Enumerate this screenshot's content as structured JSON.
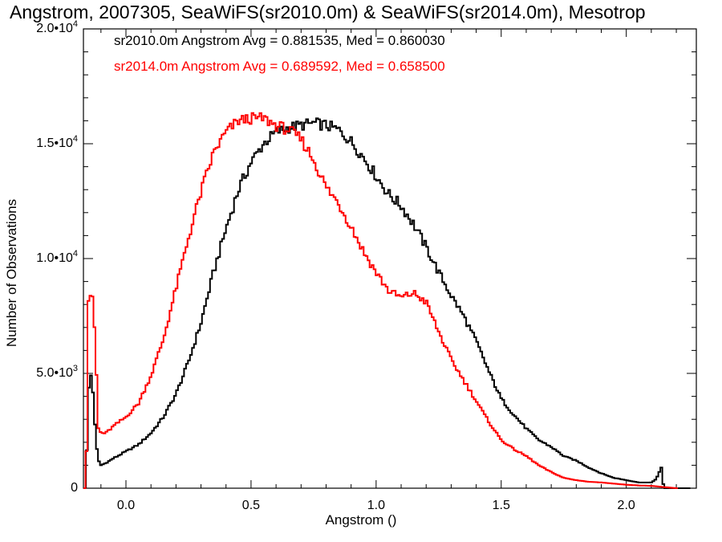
{
  "chart_data": {
    "type": "line",
    "title": "Angstrom, 2007305, SeaWiFS(sr2010.0m) & SeaWiFS(sr2014.0m), Mesotrop",
    "xlabel": "Angstrom ()",
    "ylabel": "Number of Observations",
    "xlim": [
      -0.17,
      2.28
    ],
    "ylim": [
      0,
      20000
    ],
    "x_ticks": [
      {
        "value": 0.0,
        "label": "0.0"
      },
      {
        "value": 0.5,
        "label": "0.5"
      },
      {
        "value": 1.0,
        "label": "1.0"
      },
      {
        "value": 1.5,
        "label": "1.5"
      },
      {
        "value": 2.0,
        "label": "2.0"
      }
    ],
    "y_ticks": [
      {
        "value": 0,
        "label": "0",
        "exp": ""
      },
      {
        "value": 5000,
        "label": "5.0•10",
        "exp": "3"
      },
      {
        "value": 10000,
        "label": "1.0•10",
        "exp": "4"
      },
      {
        "value": 15000,
        "label": "1.5•10",
        "exp": "4"
      },
      {
        "value": 20000,
        "label": "2.0•10",
        "exp": "4"
      }
    ],
    "step": "histogram",
    "series": [
      {
        "name": "sr2010.0m",
        "color": "#000000",
        "stat_text": "sr2010.0m Angstrom Avg = 0.881535, Med = 0.860030",
        "x": [
          -0.16,
          -0.15,
          -0.14,
          -0.13,
          -0.12,
          -0.11,
          -0.1,
          -0.08,
          -0.05,
          0.0,
          0.05,
          0.1,
          0.15,
          0.2,
          0.25,
          0.3,
          0.35,
          0.4,
          0.45,
          0.5,
          0.55,
          0.6,
          0.65,
          0.7,
          0.75,
          0.8,
          0.85,
          0.9,
          0.95,
          1.0,
          1.05,
          1.1,
          1.15,
          1.2,
          1.25,
          1.3,
          1.35,
          1.4,
          1.45,
          1.5,
          1.55,
          1.6,
          1.65,
          1.7,
          1.75,
          1.8,
          1.85,
          1.9,
          1.95,
          2.0,
          2.05,
          2.1,
          2.12,
          2.14,
          2.15,
          2.2,
          2.25
        ],
        "y": [
          0,
          4200,
          4900,
          4000,
          2000,
          1200,
          1000,
          1100,
          1300,
          1600,
          1900,
          2400,
          3100,
          4100,
          5500,
          7200,
          9400,
          11300,
          13000,
          14200,
          15000,
          15500,
          15700,
          15800,
          15900,
          15800,
          15600,
          15100,
          14400,
          13600,
          12800,
          12300,
          11500,
          10500,
          9400,
          8400,
          7500,
          6400,
          5100,
          3900,
          3200,
          2600,
          2100,
          1800,
          1400,
          1200,
          900,
          650,
          450,
          350,
          250,
          250,
          400,
          900,
          0,
          0,
          0
        ]
      },
      {
        "name": "sr2014.0m",
        "color": "#ff0000",
        "stat_text": "sr2014.0m Angstrom Avg = 0.689592, Med = 0.658500",
        "x": [
          -0.17,
          -0.16,
          -0.15,
          -0.14,
          -0.13,
          -0.12,
          -0.11,
          -0.1,
          -0.08,
          -0.05,
          0.0,
          0.05,
          0.1,
          0.15,
          0.2,
          0.25,
          0.3,
          0.35,
          0.4,
          0.45,
          0.5,
          0.55,
          0.6,
          0.65,
          0.7,
          0.75,
          0.8,
          0.85,
          0.9,
          0.95,
          1.0,
          1.05,
          1.1,
          1.15,
          1.2,
          1.25,
          1.3,
          1.35,
          1.4,
          1.45,
          1.5,
          1.55,
          1.6,
          1.65,
          1.7,
          1.75,
          1.8,
          1.85,
          1.9,
          1.95,
          2.0,
          2.05,
          2.1,
          2.15,
          2.2
        ],
        "y": [
          0,
          0,
          8200,
          8500,
          8000,
          5500,
          2600,
          2400,
          2400,
          2700,
          3100,
          3700,
          4900,
          6500,
          8700,
          10900,
          12900,
          14600,
          15500,
          16000,
          16100,
          16100,
          15800,
          15600,
          15200,
          14300,
          13100,
          12400,
          11400,
          10300,
          9400,
          8600,
          8300,
          8500,
          8100,
          6800,
          5600,
          4700,
          3800,
          2900,
          2100,
          1700,
          1400,
          1000,
          700,
          450,
          350,
          280,
          250,
          200,
          150,
          120,
          100,
          50,
          0
        ]
      }
    ]
  }
}
